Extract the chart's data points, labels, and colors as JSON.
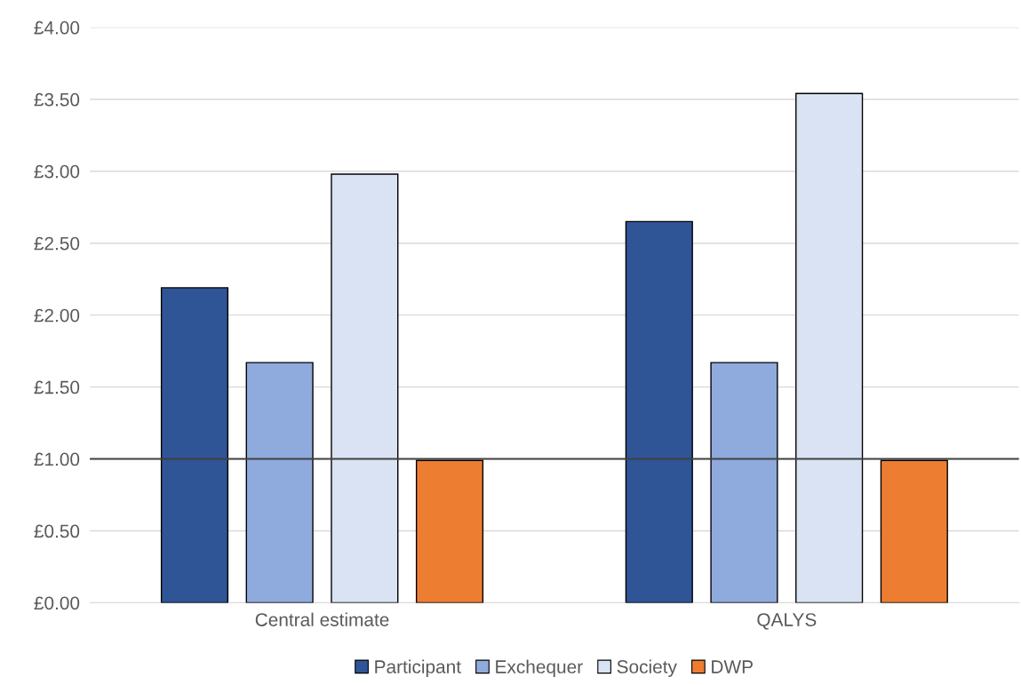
{
  "chart_data": {
    "type": "bar",
    "categories": [
      "Central estimate",
      "QALYS"
    ],
    "series": [
      {
        "name": "Participant",
        "color": "#2f5597",
        "values": [
          2.19,
          2.65
        ]
      },
      {
        "name": "Exchequer",
        "color": "#8faadc",
        "values": [
          1.67,
          1.67
        ]
      },
      {
        "name": "Society",
        "color": "#dae3f3",
        "values": [
          2.98,
          3.54
        ]
      },
      {
        "name": "DWP",
        "color": "#ed7d31",
        "values": [
          0.99,
          0.99
        ]
      }
    ],
    "ylim": [
      0,
      4
    ],
    "yticks": [
      {
        "value": 0,
        "label": "£0.00"
      },
      {
        "value": 0.5,
        "label": "£0.50"
      },
      {
        "value": 1,
        "label": "£1.00"
      },
      {
        "value": 1.5,
        "label": "£1.50"
      },
      {
        "value": 2,
        "label": "£2.00"
      },
      {
        "value": 2.5,
        "label": "£2.50"
      },
      {
        "value": 3,
        "label": "£3.00"
      },
      {
        "value": 3.5,
        "label": "£3.50"
      },
      {
        "value": 4,
        "label": "£4.00"
      }
    ],
    "ref_lines": [
      {
        "axis": "y",
        "value": 1,
        "color": "#404040"
      }
    ],
    "grid": "y",
    "legend": "bottom"
  }
}
